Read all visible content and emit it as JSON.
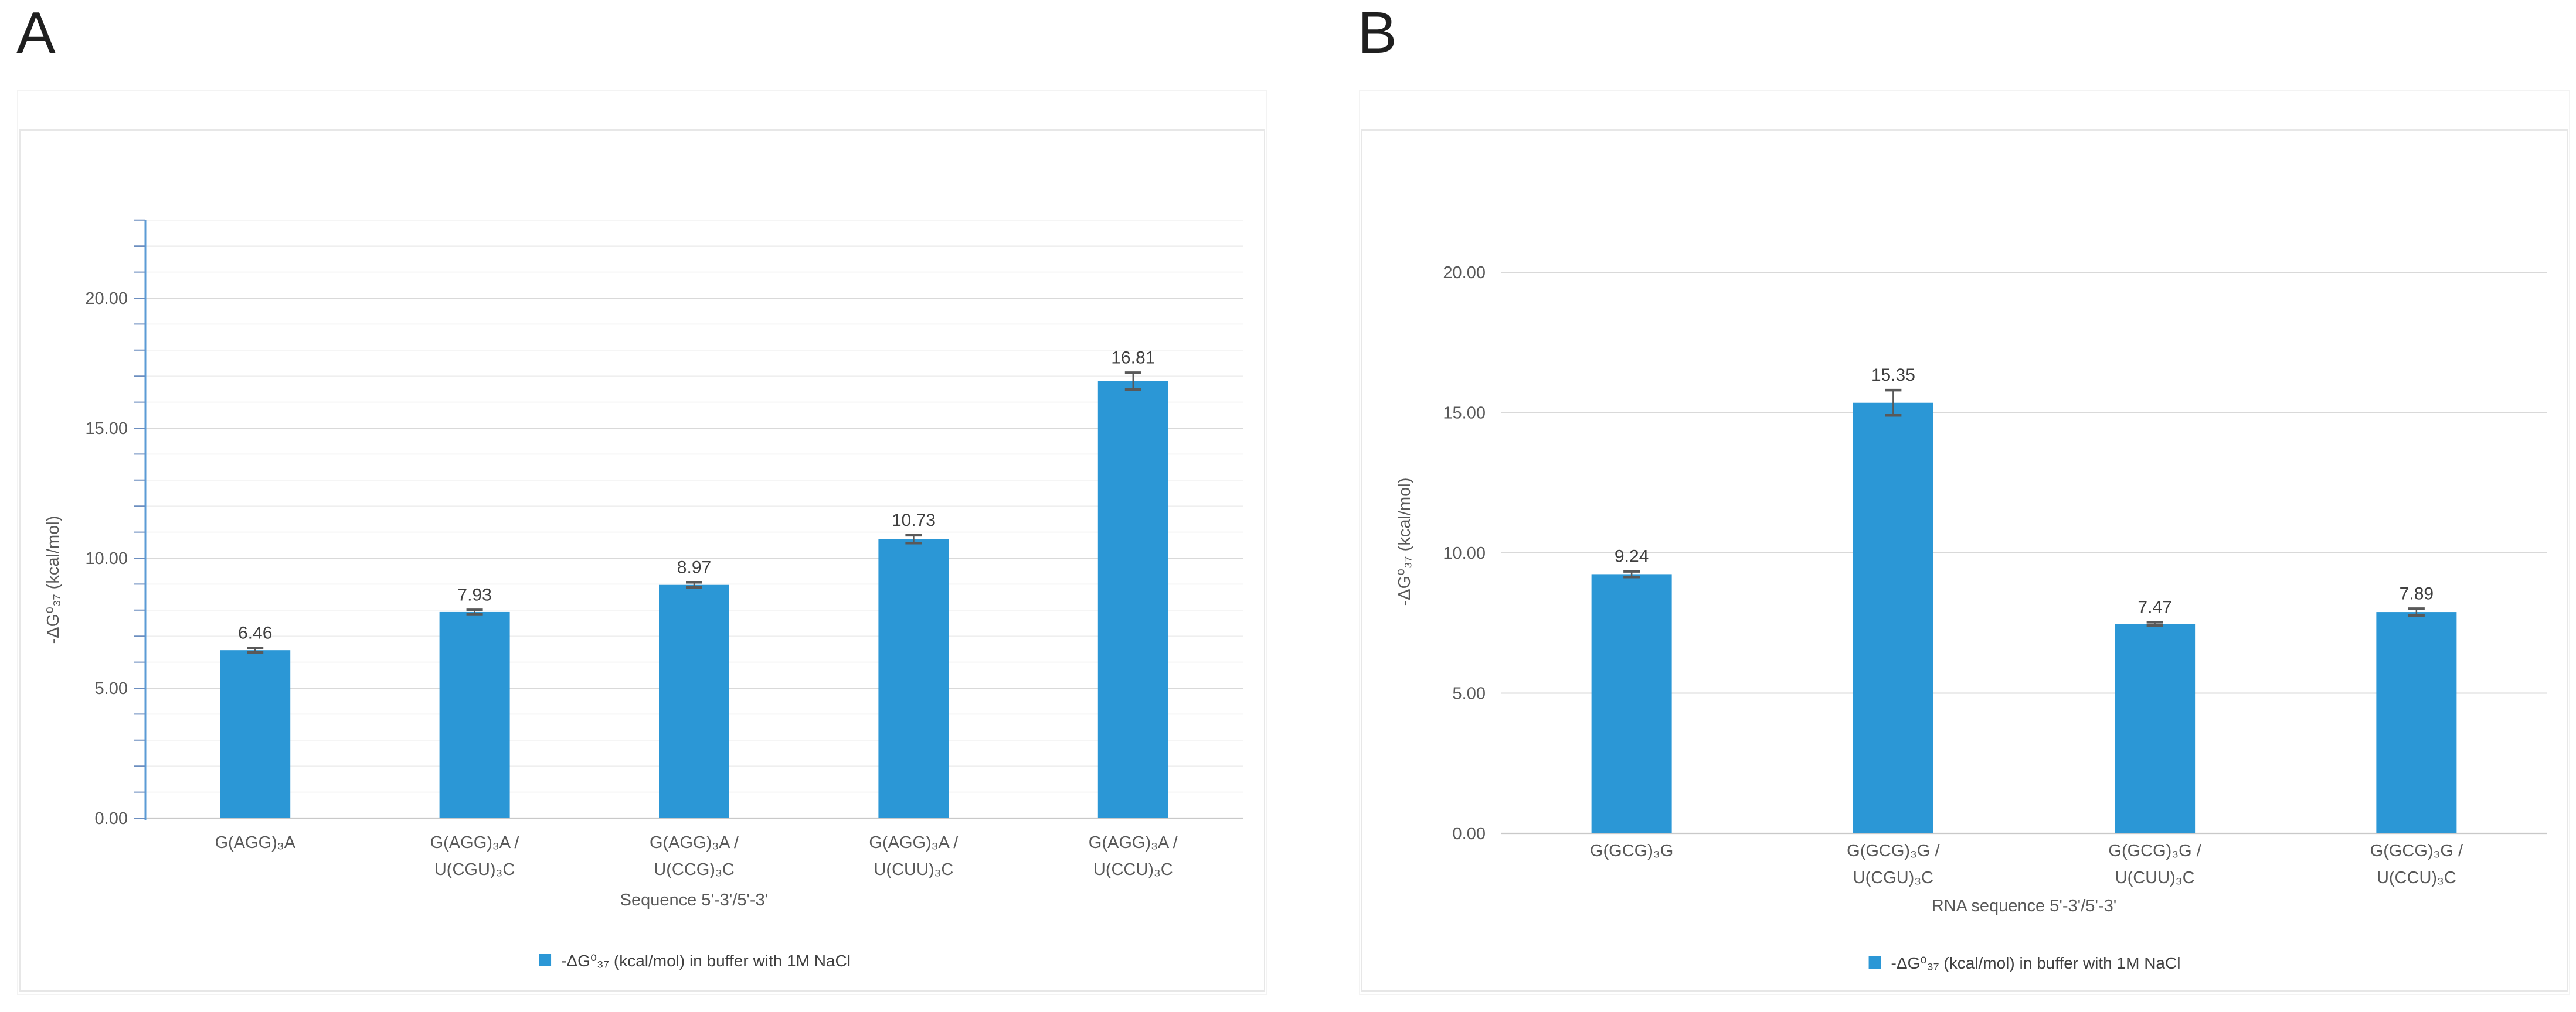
{
  "panels": [
    {
      "letter": "A"
    },
    {
      "letter": "B"
    }
  ],
  "colors": {
    "bar": "#2B97D6",
    "error_bar": "#595959",
    "axis_line": "#5B9BD5",
    "axis_tick": "#6C8EBF",
    "grid_major": "#D9D9D9",
    "grid_minor": "#EFEFEF",
    "baseline": "#C9C9C9",
    "frame_border": "#E7E7E7",
    "outer_border": "#F3F3F3",
    "tick_text": "#595959",
    "value_text": "#3F3F3F",
    "legend_text": "#404040"
  },
  "chart_data": [
    {
      "type": "bar",
      "panel": "A",
      "title": "",
      "categories": [
        "G(AGG)₃A",
        "G(AGG)₃A /\nU(CGU)₃C",
        "G(AGG)₃A /\nU(CCG)₃C",
        "G(AGG)₃A /\nU(CUU)₃C",
        "G(AGG)₃A /\nU(CCU)₃C"
      ],
      "values": [
        6.46,
        7.93,
        8.97,
        10.73,
        16.81
      ],
      "value_labels": [
        "6.46",
        "7.93",
        "8.97",
        "10.73",
        "16.81"
      ],
      "errors": [
        0.08,
        0.08,
        0.1,
        0.15,
        0.32
      ],
      "xlabel": "Sequence 5'-3'/5'-3'",
      "ylabel": "-ΔG⁰₃₇ (kcal/mol)",
      "ytick_labels": [
        "0.00",
        "5.00",
        "10.00",
        "15.00",
        "20.00"
      ],
      "ytick_values": [
        0,
        5,
        10,
        15,
        20
      ],
      "ylim": [
        0,
        23
      ],
      "major_unit": 5,
      "minor_unit": 1,
      "grid": "major+minor",
      "axis_line": true,
      "legend": "-ΔG⁰₃₇  (kcal/mol)  in buffer with 1M NaCl",
      "legend_position": "bottom"
    },
    {
      "type": "bar",
      "panel": "B",
      "title": "",
      "categories": [
        "G(GCG)₃G",
        "G(GCG)₃G /\nU(CGU)₃C",
        "G(GCG)₃G /\nU(CUU)₃C",
        "G(GCG)₃G /\nU(CCU)₃C"
      ],
      "values": [
        9.24,
        15.35,
        7.47,
        7.89
      ],
      "value_labels": [
        "9.24",
        "15.35",
        "7.47",
        "7.89"
      ],
      "errors": [
        0.1,
        0.45,
        0.06,
        0.12
      ],
      "xlabel": "RNA sequence 5'-3'/5'-3'",
      "ylabel": "-ΔG⁰₃₇ (kcal/mol)",
      "ytick_labels": [
        "0.00",
        "5.00",
        "10.00",
        "15.00",
        "20.00"
      ],
      "ytick_values": [
        0,
        5,
        10,
        15,
        20
      ],
      "ylim": [
        0,
        21
      ],
      "major_unit": 5,
      "minor_unit": 5,
      "grid": "major",
      "axis_line": false,
      "legend": "-ΔG⁰₃₇  (kcal/mol) in buffer with 1M NaCl",
      "legend_position": "bottom"
    }
  ]
}
